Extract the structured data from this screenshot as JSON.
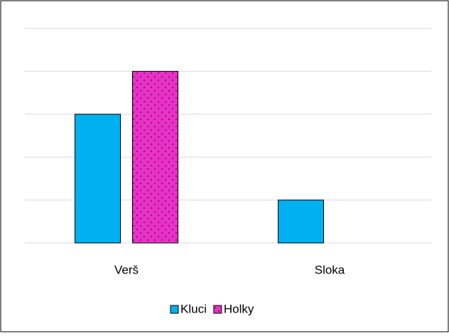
{
  "chart_data": {
    "type": "bar",
    "categories": [
      "Verš",
      "Sloka"
    ],
    "series": [
      {
        "name": "Kluci",
        "color": "#00b0f0",
        "values": [
          3,
          1
        ]
      },
      {
        "name": "Holky",
        "color": "#ec2fc9",
        "pattern": "dots",
        "values": [
          4,
          0
        ]
      }
    ],
    "ylim": [
      0,
      5
    ],
    "yticks": [
      0,
      1,
      2,
      3,
      4,
      5
    ],
    "grid": true,
    "legend": "bottom"
  }
}
